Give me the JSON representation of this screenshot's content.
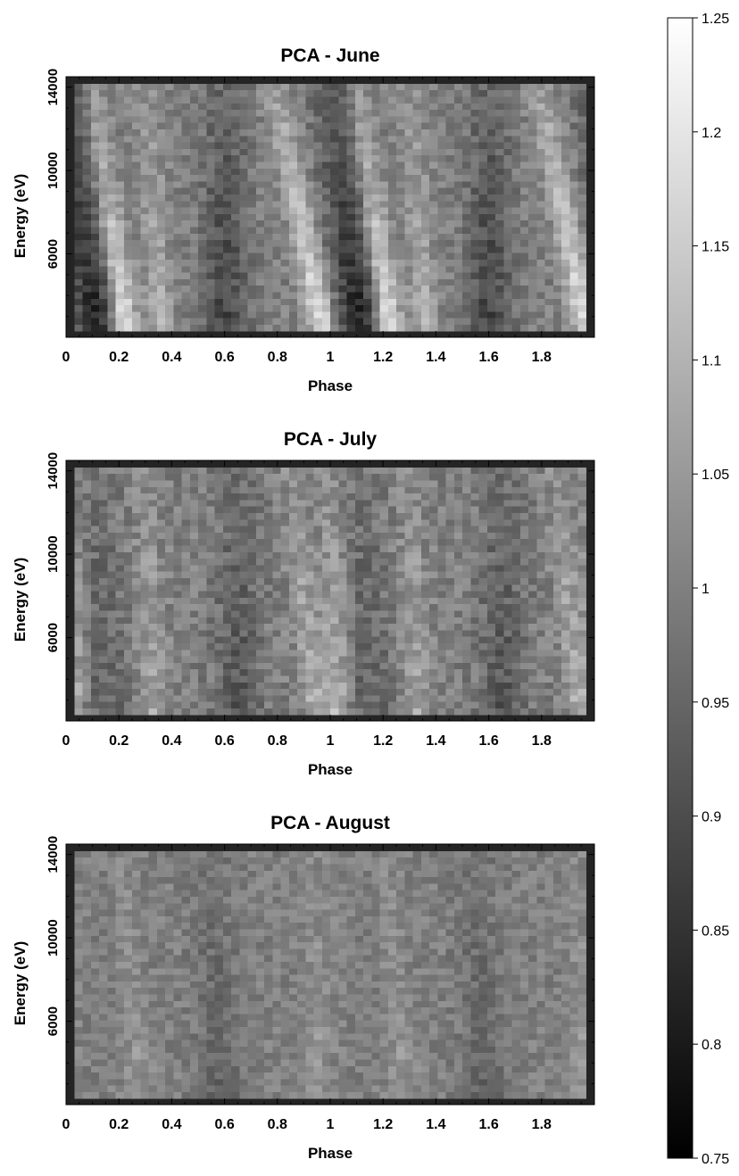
{
  "chart_data": [
    {
      "type": "heatmap",
      "title": "PCA - June",
      "xlabel": "Phase",
      "ylabel": "Energy (eV)",
      "xlim": [
        0,
        2
      ],
      "ylim": [
        2000,
        14500
      ],
      "x_ticks": [
        0,
        0.2,
        0.4,
        0.6,
        0.8,
        1,
        1.2,
        1.4,
        1.6,
        1.8
      ],
      "x_tick_labels": [
        "0",
        "0.2",
        "0.4",
        "0.6",
        "0.8",
        "1",
        "1.2",
        "1.4",
        "1.6",
        "1.8"
      ],
      "y_ticks": [
        6000,
        10000,
        14000
      ],
      "y_tick_labels": [
        "6000",
        "10000",
        "14000"
      ],
      "colormap": "grayscale",
      "pattern": {
        "bright_bands": [
          {
            "phase_low": 0.23,
            "phase_high": 0.09,
            "strength": 0.22
          },
          {
            "phase_low": 0.36,
            "phase_high": 0.3,
            "strength": 0.1
          },
          {
            "phase_low": 0.98,
            "phase_high": 0.78,
            "strength": 0.2
          }
        ],
        "dark_bands": [
          {
            "phase_low": 0.12,
            "phase_high": 0.01,
            "strength": 0.18
          },
          {
            "phase_low": 0.6,
            "phase_high": 0.6,
            "strength": 0.12
          }
        ],
        "noise": 0.045
      }
    },
    {
      "type": "heatmap",
      "title": "PCA - July",
      "xlabel": "Phase",
      "ylabel": "Energy (eV)",
      "xlim": [
        0,
        2
      ],
      "ylim": [
        2000,
        14500
      ],
      "x_ticks": [
        0,
        0.2,
        0.4,
        0.6,
        0.8,
        1,
        1.2,
        1.4,
        1.6,
        1.8
      ],
      "x_tick_labels": [
        "0",
        "0.2",
        "0.4",
        "0.6",
        "0.8",
        "1",
        "1.2",
        "1.4",
        "1.6",
        "1.8"
      ],
      "y_ticks": [
        6000,
        10000,
        14000
      ],
      "y_tick_labels": [
        "6000",
        "10000",
        "14000"
      ],
      "colormap": "grayscale",
      "pattern": {
        "bright_bands": [
          {
            "phase_low": 0.03,
            "phase_high": 0.0,
            "strength": 0.1
          },
          {
            "phase_low": 0.33,
            "phase_high": 0.3,
            "strength": 0.08
          },
          {
            "phase_low": 0.95,
            "phase_high": 0.85,
            "strength": 0.1
          }
        ],
        "dark_bands": [
          {
            "phase_low": 0.65,
            "phase_high": 0.65,
            "strength": 0.08
          },
          {
            "phase_low": 0.15,
            "phase_high": 0.1,
            "strength": 0.06
          }
        ],
        "noise": 0.05
      }
    },
    {
      "type": "heatmap",
      "title": "PCA - August",
      "xlabel": "Phase",
      "ylabel": "Energy (eV)",
      "xlim": [
        0,
        2
      ],
      "ylim": [
        2000,
        14500
      ],
      "x_ticks": [
        0,
        0.2,
        0.4,
        0.6,
        0.8,
        1,
        1.2,
        1.4,
        1.6,
        1.8
      ],
      "x_tick_labels": [
        "0",
        "0.2",
        "0.4",
        "0.6",
        "0.8",
        "1",
        "1.2",
        "1.4",
        "1.6",
        "1.8"
      ],
      "y_ticks": [
        6000,
        10000,
        14000
      ],
      "y_tick_labels": [
        "6000",
        "10000",
        "14000"
      ],
      "colormap": "grayscale",
      "pattern": {
        "bright_bands": [
          {
            "phase_low": 0.28,
            "phase_high": 0.2,
            "strength": 0.05
          },
          {
            "phase_low": 0.95,
            "phase_high": 0.95,
            "strength": 0.05
          }
        ],
        "dark_bands": [
          {
            "phase_low": 0.58,
            "phase_high": 0.55,
            "strength": 0.05
          }
        ],
        "noise": 0.04
      }
    }
  ],
  "colorbar": {
    "range": [
      0.75,
      1.25
    ],
    "ticks": [
      0.75,
      0.8,
      0.85,
      0.9,
      0.95,
      1,
      1.05,
      1.1,
      1.15,
      1.2,
      1.25
    ],
    "tick_labels": [
      "0.75",
      "0.8",
      "0.85",
      "0.9",
      "0.95",
      "1",
      "1.05",
      "1.1",
      "1.15",
      "1.2",
      "1.25"
    ],
    "color_low": "#000000",
    "color_high": "#ffffff"
  }
}
